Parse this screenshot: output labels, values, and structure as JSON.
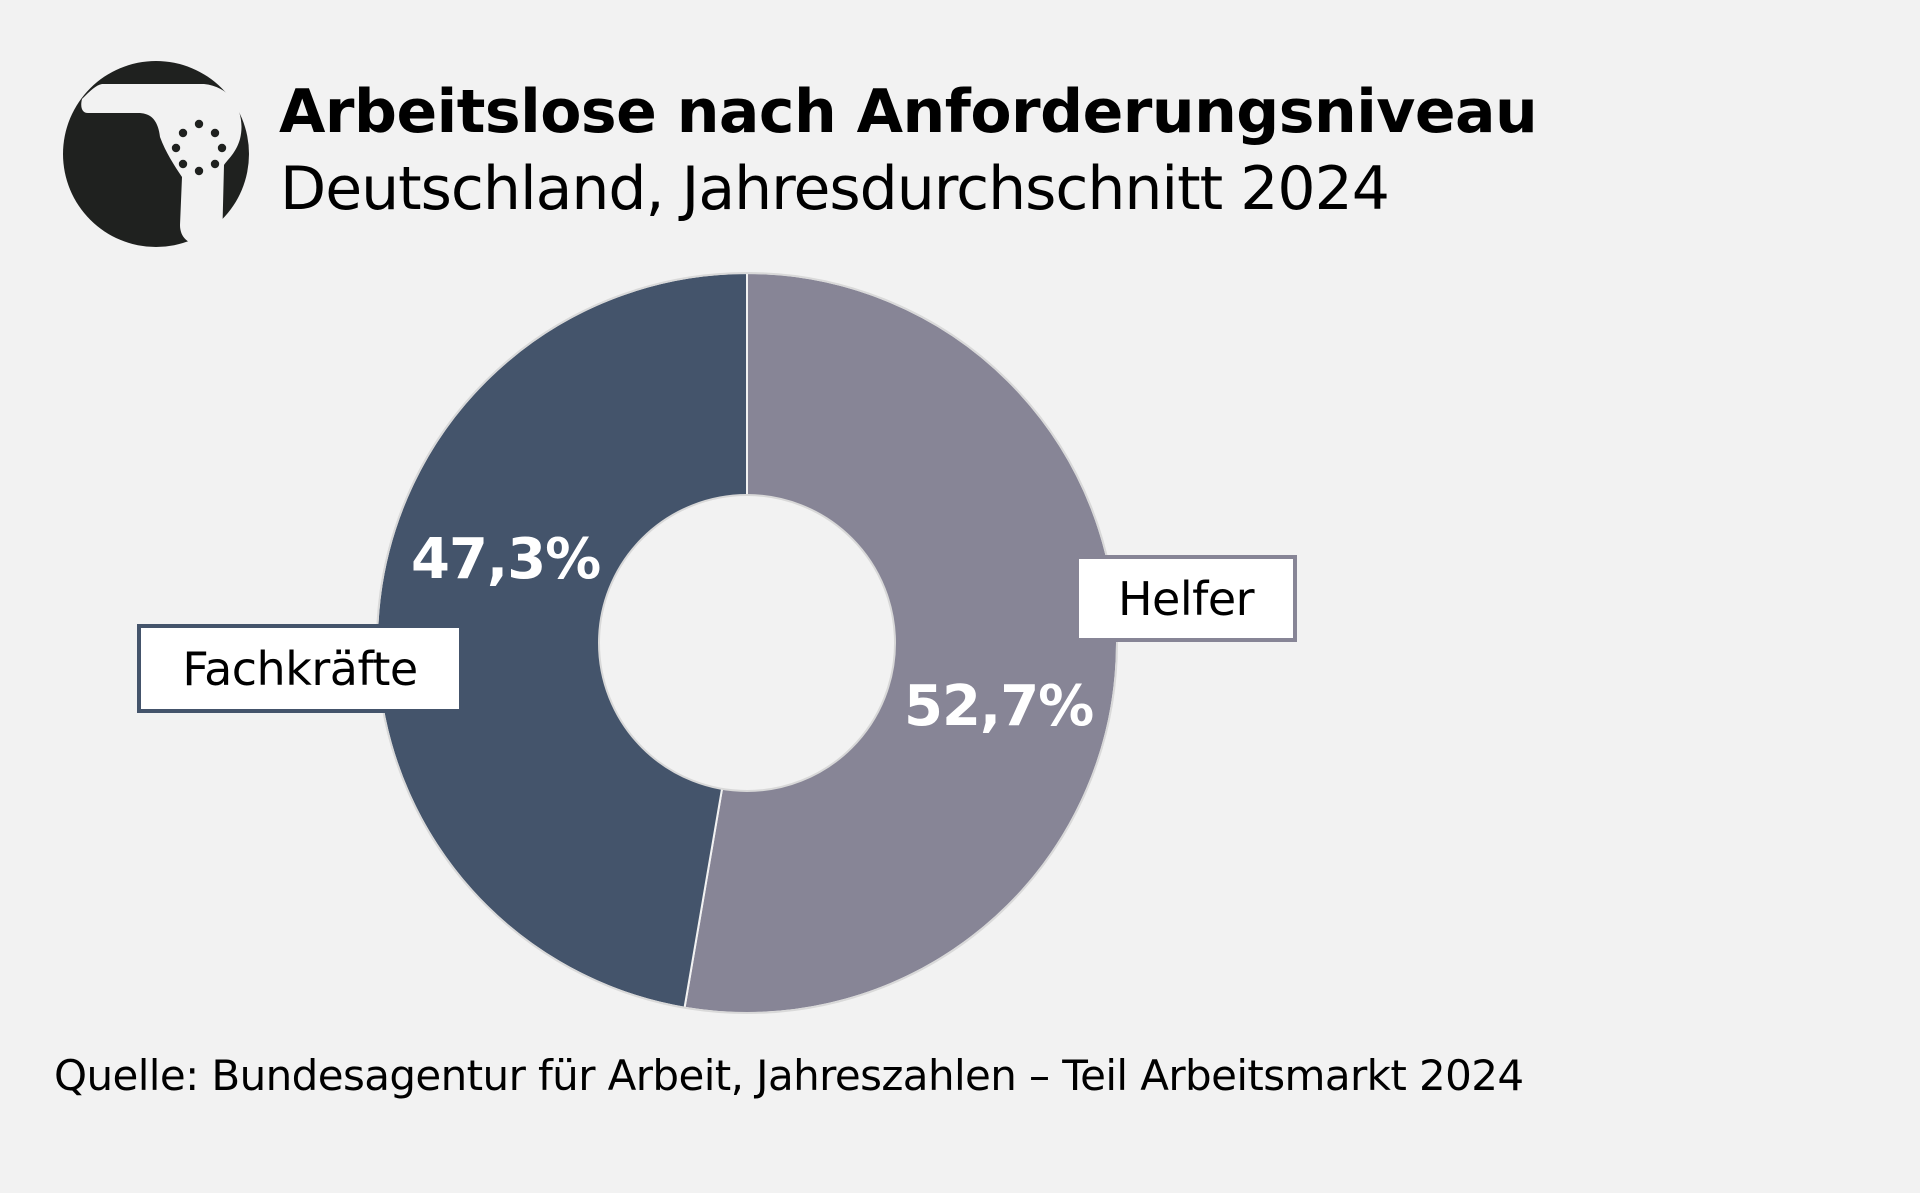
{
  "header": {
    "icon": "shower-head-icon",
    "title": "Arbeitslose nach Anforderungsniveau",
    "subtitle": "Deutschland, Jahresdurchschnitt 2024"
  },
  "chart_data": {
    "type": "pie",
    "variant": "donut",
    "title": "Arbeitslose nach Anforderungsniveau",
    "subtitle": "Deutschland, Jahresdurchschnitt 2024",
    "unit": "%",
    "start": "top",
    "direction": "clockwise",
    "slices": [
      {
        "name": "Helfer",
        "value": 52.7,
        "label": "52,7%",
        "color": "#878596"
      },
      {
        "name": "Fachkräfte",
        "value": 47.3,
        "label": "47,3%",
        "color": "#44546b"
      }
    ],
    "legend": "none (labels attached to slices)"
  },
  "colors": {
    "background": "#f2f2f2",
    "icon": "#1f211f",
    "separator": "#f2f2f2"
  },
  "footer": {
    "source": "Quelle: Bundesagentur für Arbeit, Jahreszahlen – Teil Arbeitsmarkt 2024"
  }
}
